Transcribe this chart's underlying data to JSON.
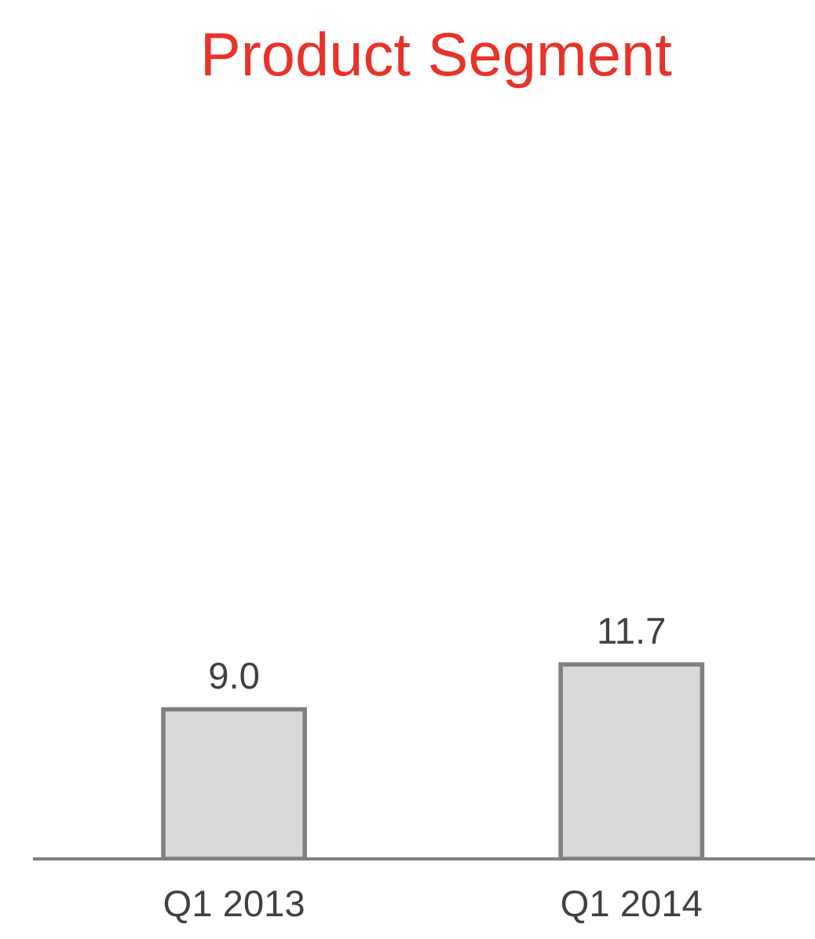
{
  "chart_data": {
    "type": "bar",
    "title": "Product Segment",
    "categories": [
      "Q1 2013",
      "Q1 2014"
    ],
    "values": [
      9.0,
      11.7
    ],
    "value_labels": [
      "9.0",
      "11.7"
    ],
    "color": "#d9d9d9",
    "grid": false,
    "legend": false
  }
}
